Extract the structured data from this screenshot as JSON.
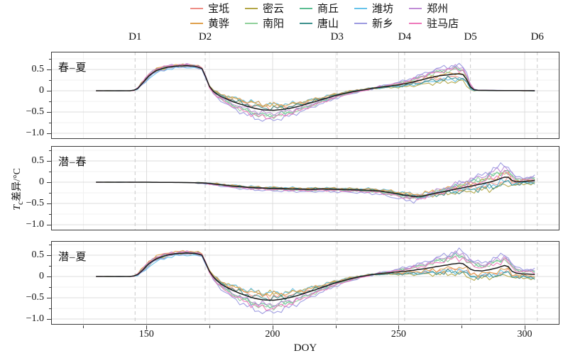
{
  "figure": {
    "background": "#ffffff"
  },
  "legend": {
    "items_note": "row-major: row1 then row2, 5 columns"
  },
  "axes": {
    "x": {
      "title": "DOY",
      "ticks": [
        150,
        200,
        250,
        300
      ],
      "minor_ticks": [
        125,
        175,
        225,
        275
      ],
      "domain": [
        112.2,
        313.8
      ]
    },
    "y": {
      "title_italic": "T",
      "title_sub": "c",
      "title_rest": "差异/°C",
      "ticks": [
        0.5,
        0,
        -0.5,
        -1.0
      ],
      "tick_labels": [
        "0.5",
        "0",
        "−0.5",
        "−1.0"
      ],
      "minor": [
        0.75,
        0.25,
        -0.25,
        -0.75
      ]
    }
  },
  "event_lines": {
    "labels": [
      "D1",
      "D2",
      "D3",
      "D4",
      "D5",
      "D6"
    ],
    "doy": [
      145.5,
      173.3,
      225.6,
      252.4,
      278.5,
      305
    ]
  },
  "colors": {
    "grid_major": "#dcdcdc",
    "grid_minor": "#f1f1f1",
    "dashed_line": "#c9c9c9",
    "border": "#3a3a3a",
    "mean_line": "#1c1c1c"
  },
  "chart_data": {
    "type": "line",
    "xlabel": "DOY",
    "ylabel": "Tc差异/°C",
    "x_range_of_data": [
      130,
      305
    ],
    "ylim": [
      -1.13,
      0.9
    ],
    "cities": [
      {
        "name": "宝坻",
        "color": "#ee8e86",
        "coef": {
          "p1": [
            0.2,
            0.3,
            -0.35
          ],
          "p2": [
            0,
            0.2,
            -0.25
          ],
          "p3": [
            0.2,
            0.3,
            -0.5
          ]
        }
      },
      {
        "name": "密云",
        "color": "#b3a646",
        "coef": {
          "p1": [
            -0.2,
            0.5,
            -0.9
          ],
          "p2": [
            0,
            0.3,
            -0.6
          ],
          "p3": [
            -0.3,
            0.55,
            -0.85
          ]
        }
      },
      {
        "name": "商丘",
        "color": "#5bbd92",
        "coef": {
          "p1": [
            -0.1,
            -0.5,
            0.6
          ],
          "p2": [
            0,
            -0.4,
            0.5
          ],
          "p3": [
            -0.1,
            -0.45,
            0.65
          ]
        }
      },
      {
        "name": "潍坊",
        "color": "#67c3ea",
        "coef": {
          "p1": [
            -0.8,
            0.6,
            -0.6
          ],
          "p2": [
            0,
            0.5,
            -0.35
          ],
          "p3": [
            -0.8,
            0.6,
            -0.6
          ]
        }
      },
      {
        "name": "郑州",
        "color": "#c08cd6",
        "coef": {
          "p1": [
            0.6,
            -0.3,
            0.8
          ],
          "p2": [
            0,
            -0.2,
            0.75
          ],
          "p3": [
            0.5,
            -0.35,
            0.8
          ]
        }
      },
      {
        "name": "黄骅",
        "color": "#dfa04c",
        "coef": {
          "p1": [
            0.5,
            0.55,
            0.1
          ],
          "p2": [
            0,
            0.4,
            0.2
          ],
          "p3": [
            0.7,
            0.5,
            -0.35
          ]
        }
      },
      {
        "name": "南阳",
        "color": "#8fd19b",
        "coef": {
          "p1": [
            0.1,
            -0.6,
            0.5
          ],
          "p2": [
            0,
            -0.3,
            0.45
          ],
          "p3": [
            0.1,
            -0.55,
            0.55
          ]
        }
      },
      {
        "name": "唐山",
        "color": "#3d908c",
        "coef": {
          "p1": [
            0.3,
            0.2,
            -0.5
          ],
          "p2": [
            0,
            0.1,
            -0.45
          ],
          "p3": [
            0.3,
            0.15,
            -0.7
          ]
        }
      },
      {
        "name": "新乡",
        "color": "#9c9ae0",
        "coef": {
          "p1": [
            -0.5,
            -1,
            1
          ],
          "p2": [
            0,
            -1,
            1
          ],
          "p3": [
            -0.4,
            -1,
            1
          ]
        }
      },
      {
        "name": "驻马店",
        "color": "#ee78ba",
        "coef": {
          "p1": [
            0.4,
            -0.7,
            0.55
          ],
          "p2": [
            0,
            -0.5,
            0.3
          ],
          "p3": [
            0.4,
            -0.65,
            0.45
          ]
        }
      }
    ],
    "panels": [
      {
        "label": "春–夏",
        "mean": [
          [
            130,
            0
          ],
          [
            144,
            0
          ],
          [
            146,
            0.02
          ],
          [
            148,
            0.15
          ],
          [
            151,
            0.35
          ],
          [
            154,
            0.48
          ],
          [
            158,
            0.55
          ],
          [
            162,
            0.58
          ],
          [
            166,
            0.59
          ],
          [
            170,
            0.57
          ],
          [
            172,
            0.52
          ],
          [
            173,
            0.4
          ],
          [
            175,
            0.1
          ],
          [
            177,
            -0.05
          ],
          [
            180,
            -0.15
          ],
          [
            184,
            -0.25
          ],
          [
            188,
            -0.33
          ],
          [
            192,
            -0.4
          ],
          [
            196,
            -0.45
          ],
          [
            200,
            -0.46
          ],
          [
            204,
            -0.44
          ],
          [
            208,
            -0.4
          ],
          [
            212,
            -0.34
          ],
          [
            216,
            -0.27
          ],
          [
            220,
            -0.2
          ],
          [
            224,
            -0.13
          ],
          [
            228,
            -0.07
          ],
          [
            232,
            -0.02
          ],
          [
            236,
            0.02
          ],
          [
            240,
            0.06
          ],
          [
            245,
            0.1
          ],
          [
            250,
            0.14
          ],
          [
            254,
            0.18
          ],
          [
            258,
            0.24
          ],
          [
            262,
            0.3
          ],
          [
            266,
            0.35
          ],
          [
            270,
            0.38
          ],
          [
            273,
            0.4
          ],
          [
            276,
            0.38
          ],
          [
            278,
            0.15
          ],
          [
            279,
            0.03
          ],
          [
            281,
            0.01
          ],
          [
            285,
            0.008
          ],
          [
            290,
            0.005
          ],
          [
            295,
            0.004
          ],
          [
            300,
            0.002
          ],
          [
            305,
            0
          ]
        ],
        "env_plat": [
          [
            144,
            0
          ],
          [
            147,
            0.03
          ],
          [
            150,
            0.07
          ],
          [
            154,
            0.08
          ],
          [
            158,
            0.06
          ],
          [
            164,
            0.05
          ],
          [
            170,
            0.05
          ],
          [
            173,
            0.03
          ],
          [
            176,
            0
          ]
        ],
        "env_dip": [
          [
            173,
            0
          ],
          [
            177,
            0.06
          ],
          [
            182,
            0.13
          ],
          [
            188,
            0.19
          ],
          [
            194,
            0.23
          ],
          [
            198,
            0.24
          ],
          [
            204,
            0.2
          ],
          [
            210,
            0.15
          ],
          [
            216,
            0.11
          ],
          [
            222,
            0.08
          ],
          [
            228,
            0.05
          ],
          [
            235,
            0.03
          ],
          [
            242,
            0.01
          ],
          [
            248,
            0
          ]
        ],
        "env_late": [
          [
            240,
            0.02
          ],
          [
            248,
            0.05
          ],
          [
            255,
            0.09
          ],
          [
            262,
            0.15
          ],
          [
            268,
            0.19
          ],
          [
            273,
            0.2
          ],
          [
            277,
            0.17
          ],
          [
            279,
            0.03
          ],
          [
            281,
            0.004
          ],
          [
            290,
            0.004
          ],
          [
            305,
            0.004
          ]
        ]
      },
      {
        "label": "潜–春",
        "mean": [
          [
            130,
            0
          ],
          [
            150,
            0
          ],
          [
            160,
            -0.005
          ],
          [
            168,
            -0.01
          ],
          [
            173,
            -0.02
          ],
          [
            178,
            -0.05
          ],
          [
            184,
            -0.09
          ],
          [
            190,
            -0.12
          ],
          [
            196,
            -0.14
          ],
          [
            202,
            -0.15
          ],
          [
            208,
            -0.16
          ],
          [
            214,
            -0.17
          ],
          [
            220,
            -0.16
          ],
          [
            226,
            -0.17
          ],
          [
            232,
            -0.18
          ],
          [
            238,
            -0.19
          ],
          [
            243,
            -0.21
          ],
          [
            248,
            -0.26
          ],
          [
            252,
            -0.3
          ],
          [
            256,
            -0.34
          ],
          [
            259,
            -0.33
          ],
          [
            263,
            -0.28
          ],
          [
            268,
            -0.22
          ],
          [
            273,
            -0.16
          ],
          [
            278,
            -0.1
          ],
          [
            283,
            -0.04
          ],
          [
            288,
            0.03
          ],
          [
            291,
            0.1
          ],
          [
            293,
            0.14
          ],
          [
            295,
            0.04
          ],
          [
            297,
            0
          ],
          [
            300,
            0.02
          ],
          [
            303,
            0.03
          ],
          [
            305,
            0.05
          ]
        ],
        "env_plat": [],
        "env_dip": [
          [
            168,
            0
          ],
          [
            175,
            0.02
          ],
          [
            183,
            0.04
          ],
          [
            192,
            0.05
          ],
          [
            202,
            0.055
          ],
          [
            212,
            0.055
          ],
          [
            222,
            0.055
          ],
          [
            232,
            0.06
          ],
          [
            240,
            0.07
          ],
          [
            246,
            0.09
          ],
          [
            251,
            0.11
          ],
          [
            256,
            0.13
          ],
          [
            261,
            0.11
          ],
          [
            266,
            0.09
          ],
          [
            272,
            0.07
          ],
          [
            278,
            0.05
          ],
          [
            285,
            0.03
          ],
          [
            292,
            0.02
          ],
          [
            298,
            0.01
          ],
          [
            305,
            0.01
          ]
        ],
        "env_late": [
          [
            252,
            0
          ],
          [
            258,
            0.04
          ],
          [
            265,
            0.1
          ],
          [
            272,
            0.16
          ],
          [
            280,
            0.22
          ],
          [
            286,
            0.28
          ],
          [
            292,
            0.33
          ],
          [
            294,
            0.26
          ],
          [
            296,
            0.12
          ],
          [
            300,
            0.1
          ],
          [
            305,
            0.1
          ]
        ]
      },
      {
        "label": "潜–夏",
        "mean": [
          [
            130,
            0
          ],
          [
            144,
            0
          ],
          [
            146,
            0.02
          ],
          [
            148,
            0.12
          ],
          [
            151,
            0.3
          ],
          [
            154,
            0.42
          ],
          [
            158,
            0.5
          ],
          [
            162,
            0.54
          ],
          [
            166,
            0.55
          ],
          [
            170,
            0.54
          ],
          [
            172,
            0.5
          ],
          [
            173,
            0.38
          ],
          [
            175,
            0.12
          ],
          [
            177,
            -0.05
          ],
          [
            180,
            -0.2
          ],
          [
            184,
            -0.32
          ],
          [
            188,
            -0.42
          ],
          [
            192,
            -0.5
          ],
          [
            196,
            -0.55
          ],
          [
            200,
            -0.56
          ],
          [
            204,
            -0.53
          ],
          [
            208,
            -0.48
          ],
          [
            212,
            -0.41
          ],
          [
            216,
            -0.33
          ],
          [
            220,
            -0.25
          ],
          [
            224,
            -0.17
          ],
          [
            228,
            -0.1
          ],
          [
            232,
            -0.04
          ],
          [
            236,
            0.01
          ],
          [
            240,
            0.05
          ],
          [
            245,
            0.08
          ],
          [
            250,
            0.11
          ],
          [
            255,
            0.14
          ],
          [
            260,
            0.18
          ],
          [
            264,
            0.22
          ],
          [
            268,
            0.26
          ],
          [
            271,
            0.29
          ],
          [
            274,
            0.31
          ],
          [
            276,
            0.3
          ],
          [
            278,
            0.18
          ],
          [
            280,
            0.14
          ],
          [
            283,
            0.13
          ],
          [
            286,
            0.16
          ],
          [
            289,
            0.2
          ],
          [
            292,
            0.26
          ],
          [
            293,
            0.27
          ],
          [
            295,
            0.12
          ],
          [
            297,
            0.07
          ],
          [
            300,
            0.06
          ],
          [
            303,
            0.05
          ],
          [
            305,
            0.04
          ]
        ],
        "env_plat": [
          [
            144,
            0
          ],
          [
            147,
            0.04
          ],
          [
            150,
            0.08
          ],
          [
            154,
            0.09
          ],
          [
            158,
            0.07
          ],
          [
            164,
            0.06
          ],
          [
            170,
            0.06
          ],
          [
            174,
            0.03
          ],
          [
            177,
            0
          ]
        ],
        "env_dip": [
          [
            173,
            0
          ],
          [
            177,
            0.07
          ],
          [
            182,
            0.15
          ],
          [
            188,
            0.22
          ],
          [
            194,
            0.27
          ],
          [
            198,
            0.3
          ],
          [
            204,
            0.25
          ],
          [
            210,
            0.19
          ],
          [
            216,
            0.13
          ],
          [
            222,
            0.09
          ],
          [
            228,
            0.06
          ],
          [
            235,
            0.03
          ],
          [
            242,
            0.01
          ],
          [
            248,
            0
          ]
        ],
        "env_late": [
          [
            240,
            0.02
          ],
          [
            246,
            0.04
          ],
          [
            252,
            0.08
          ],
          [
            258,
            0.13
          ],
          [
            264,
            0.19
          ],
          [
            269,
            0.25
          ],
          [
            273,
            0.28
          ],
          [
            277,
            0.28
          ],
          [
            280,
            0.21
          ],
          [
            284,
            0.19
          ],
          [
            288,
            0.23
          ],
          [
            292,
            0.28
          ],
          [
            294,
            0.2
          ],
          [
            296,
            0.13
          ],
          [
            300,
            0.11
          ],
          [
            305,
            0.11
          ]
        ]
      }
    ]
  }
}
